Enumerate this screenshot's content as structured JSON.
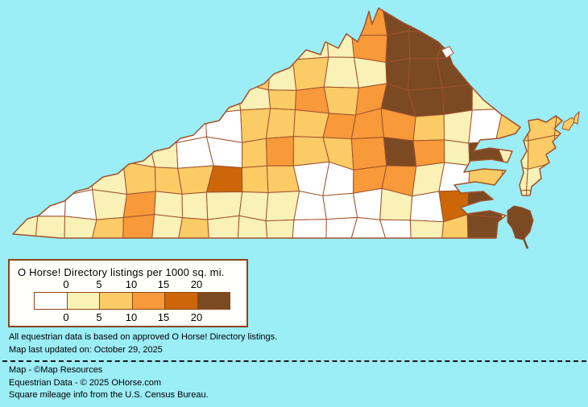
{
  "map": {
    "region": "Virginia counties choropleth",
    "water_color": "#9BEDF6",
    "county_border_color": "#A0522D",
    "class_palette": [
      "#FFFFFF",
      "#F9F1B6",
      "#FBCB66",
      "#F8993A",
      "#CC6608",
      "#7B4A22"
    ],
    "class_grid": [
      [
        1,
        1,
        1,
        1,
        1,
        1,
        1,
        1,
        1,
        1,
        1,
        1,
        3,
        5,
        5,
        5,
        5,
        1,
        1,
        1
      ],
      [
        1,
        1,
        1,
        1,
        1,
        1,
        1,
        1,
        1,
        1,
        1,
        1,
        3,
        5,
        5,
        5,
        5,
        1,
        1,
        1
      ],
      [
        1,
        1,
        1,
        1,
        1,
        1,
        1,
        1,
        2,
        1,
        2,
        1,
        1,
        5,
        5,
        5,
        3,
        1,
        1,
        1
      ],
      [
        1,
        1,
        1,
        1,
        1,
        1,
        1,
        1,
        1,
        2,
        3,
        2,
        3,
        5,
        5,
        5,
        1,
        2,
        1,
        1
      ],
      [
        1,
        1,
        1,
        1,
        1,
        1,
        0,
        0,
        2,
        2,
        2,
        3,
        3,
        3,
        2,
        1,
        0,
        2,
        2,
        2
      ],
      [
        1,
        1,
        1,
        1,
        1,
        1,
        0,
        0,
        2,
        3,
        2,
        2,
        3,
        5,
        3,
        1,
        5,
        1,
        2,
        1
      ],
      [
        0,
        0,
        0,
        1,
        2,
        2,
        2,
        4,
        2,
        2,
        0,
        0,
        3,
        3,
        1,
        0,
        2,
        1,
        1,
        1
      ],
      [
        0,
        0,
        0,
        1,
        3,
        1,
        1,
        1,
        1,
        1,
        0,
        0,
        0,
        1,
        0,
        4,
        5,
        1,
        1,
        1
      ],
      [
        1,
        1,
        1,
        2,
        3,
        1,
        2,
        1,
        1,
        1,
        0,
        0,
        0,
        0,
        1,
        2,
        5,
        1,
        1,
        1
      ]
    ]
  },
  "legend": {
    "title": "O Horse! Directory listings per 1000 sq. mi.",
    "ticks": [
      "0",
      "5",
      "10",
      "15",
      "20"
    ],
    "swatch_colors": [
      "#FFFFFF",
      "#F9F1B6",
      "#FBCB66",
      "#F8993A",
      "#CC6608",
      "#7B4A22"
    ],
    "box_border_color": "#8B4513"
  },
  "notes": {
    "line1": "All equestrian data is based on approved O Horse! Directory listings.",
    "line2": "Map last updated on: October 29, 2025"
  },
  "credits": {
    "line1": "Map - ©Map Resources",
    "line2": "Equestrian Data - © 2025 OHorse.com",
    "line3": "Square mileage info from the U.S. Census Bureau."
  }
}
